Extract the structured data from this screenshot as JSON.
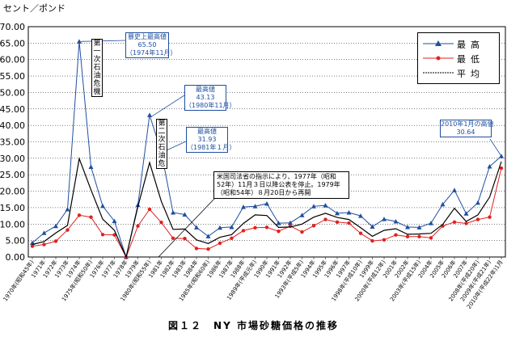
{
  "chart_data": {
    "type": "line",
    "title": "",
    "ylabel": "セント／ポンド",
    "ylim": [
      0,
      70
    ],
    "yticks": [
      "0.00",
      "5.00",
      "10.00",
      "15.00",
      "20.00",
      "25.00",
      "30.00",
      "35.00",
      "40.00",
      "45.00",
      "50.00",
      "55.00",
      "60.00",
      "65.00",
      "70.00"
    ],
    "caption": "図１２　NY 市場砂糖価格の推移",
    "grid": true,
    "categories": [
      "1970年(昭和45年)",
      "1971年",
      "1972年",
      "1973年",
      "1974年",
      "1975年(昭和50年)",
      "1976年",
      "1977年",
      "1978年",
      "1979年",
      "1980年(昭和55年)",
      "1981年",
      "1982年",
      "1983年",
      "1984年",
      "1985年(昭和60年)",
      "1986年",
      "1987年",
      "1988年",
      "1989年(平成元年)",
      "1990年",
      "1991年",
      "1992年",
      "1993年(平成5年)",
      "1994年",
      "1995年",
      "1996年",
      "1997年",
      "1998年(平成10年)",
      "1999年",
      "2000年(平成12年)",
      "2001年",
      "2002年",
      "2003年(平成15年)",
      "2004年",
      "2005年",
      "2006年",
      "2007年",
      "2008年(平成20年)",
      "2009年(平成21年)",
      "2010年(平成22年)1月"
    ],
    "xtick_labels": [
      "1970年(昭和45年)",
      "1971年",
      "1972年",
      "1973年",
      "1974年",
      "1975年(昭和50年)",
      "1976年",
      "1977年",
      "1978年",
      "1979年",
      "1980年(昭和55年)",
      "1981年",
      "1982年",
      "1983年",
      "1984年",
      "1985年(昭和60年)",
      "1986年",
      "1987年",
      "1988年",
      "1989年(平成元年)",
      "1990年",
      "1991年",
      "1992年",
      "1993年(平成5年)",
      "1994年",
      "1995年",
      "1996年",
      "1997年",
      "1998年(平成10年)",
      "1999年",
      "2000年(平成12年)",
      "2001年",
      "2002年",
      "2003年(平成15年)",
      "2004年",
      "2005年",
      "2006年",
      "2007年",
      "2008年(平成20年)",
      "2009年(平成21年)",
      "2010年(平成22年)1月"
    ],
    "xtick_indices": [
      0,
      1,
      2,
      3,
      4,
      5,
      6,
      7,
      8,
      9,
      10,
      11,
      12,
      13,
      14,
      15,
      16,
      17,
      18,
      19,
      20,
      21,
      22,
      23,
      24,
      25,
      26,
      27,
      28,
      29,
      30,
      31,
      32,
      33,
      34,
      35,
      36,
      37,
      38,
      39,
      40
    ],
    "series": [
      {
        "name": "最高",
        "color": "#1f4fa0",
        "marker": "triangle",
        "values": [
          4.3,
          7.3,
          9.4,
          14.5,
          65.5,
          27.4,
          15.5,
          10.9,
          0,
          15.8,
          43.13,
          31.93,
          13.5,
          12.9,
          9.0,
          6.3,
          8.9,
          9.1,
          15.2,
          15.4,
          16.2,
          10.3,
          10.4,
          12.7,
          15.4,
          15.7,
          13.3,
          13.5,
          12.5,
          9.2,
          11.5,
          10.8,
          9.1,
          9.0,
          10.3,
          16.0,
          20.3,
          13.2,
          16.5,
          27.5,
          30.64
        ]
      },
      {
        "name": "最低",
        "color": "#e02020",
        "marker": "circle",
        "values": [
          3.3,
          3.8,
          4.8,
          8.2,
          12.7,
          12.1,
          6.8,
          6.7,
          0,
          9.4,
          14.5,
          10.5,
          5.7,
          5.6,
          2.6,
          2.4,
          4.2,
          5.7,
          8.0,
          8.9,
          9.0,
          7.8,
          9.4,
          7.6,
          9.5,
          11.4,
          10.6,
          10.3,
          7.2,
          4.9,
          5.2,
          6.7,
          6.2,
          6.2,
          5.8,
          9.4,
          10.6,
          10.2,
          11.4,
          12.1,
          27.0
        ]
      },
      {
        "name": "平均",
        "color": "#000000",
        "marker": "none",
        "values": [
          3.8,
          4.7,
          7.3,
          9.6,
          29.9,
          20.4,
          11.5,
          8.1,
          0,
          15.3,
          28.7,
          16.9,
          8.4,
          8.5,
          5.2,
          4.1,
          6.0,
          6.8,
          10.2,
          12.8,
          12.6,
          9.0,
          9.1,
          10.0,
          12.1,
          13.3,
          12.0,
          11.4,
          8.9,
          6.3,
          8.1,
          8.6,
          6.9,
          7.0,
          7.2,
          9.9,
          14.8,
          10.8,
          12.8,
          18.2,
          29.0
        ]
      }
    ]
  },
  "legend": {
    "high": "最高",
    "low": "最低",
    "avg": "平均"
  },
  "annotations": {
    "peak1": [
      "暴史上最高値",
      "65.50",
      "（1974年11月）"
    ],
    "peak2": [
      "最高値",
      "43.13",
      "（1980年11月）"
    ],
    "peak3": [
      "最高値",
      "31.93",
      "（1981年１月）"
    ],
    "jan2010": [
      "2010年1月の高値",
      "30.64"
    ],
    "note": [
      "米国司法省の指示により、1977年（昭和",
      "52年）11月３日以降公表を停止。1979年",
      "（昭和54年）８月20日から再開"
    ],
    "crisis1": "第一次石油危機",
    "crisis2": "第二次石油危"
  }
}
